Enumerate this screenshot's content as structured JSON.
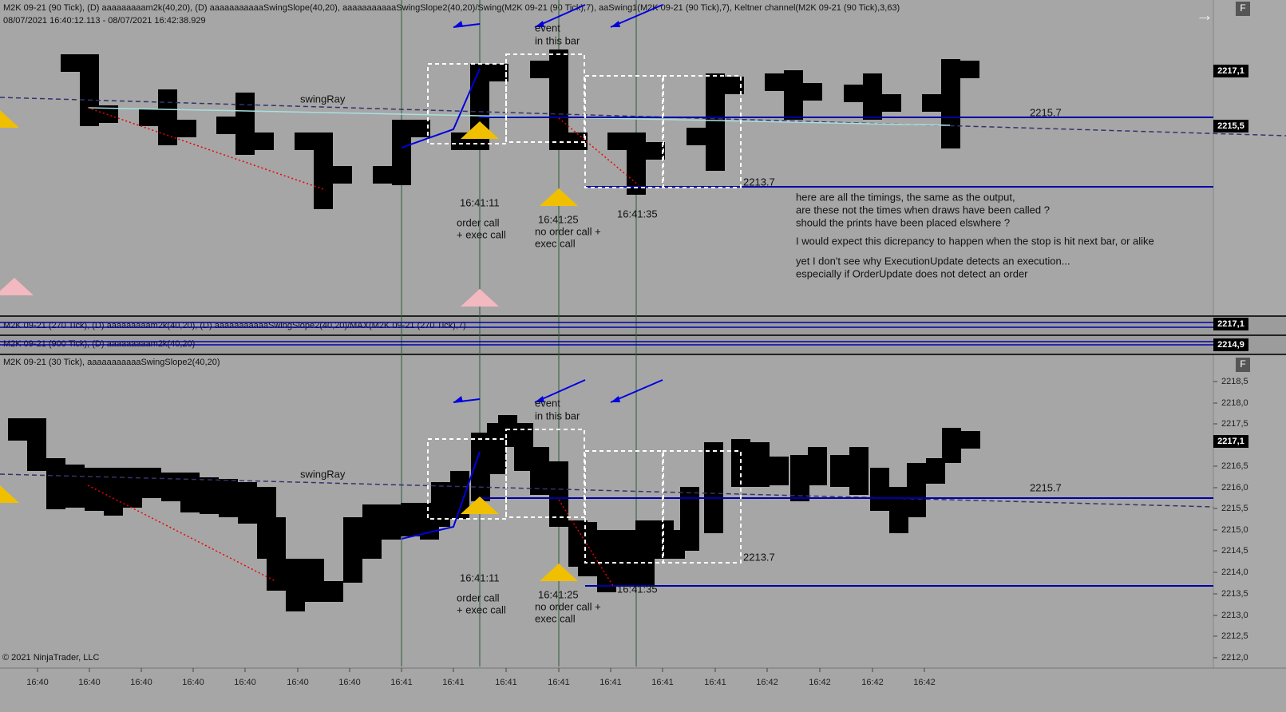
{
  "top_panel": {
    "header": "M2K 09-21 (90 Tick), (D) aaaaaaaaam2k(40,20), (D) aaaaaaaaaaaSwingSlope(40,20), aaaaaaaaaaaSwingSlope2(40,20)/Swing(M2K 09-21 (90 Tick),7), aaSwing1(M2K 09-21 (90 Tick),7), Keltner channel(M2K 09-21 (90 Tick),3,63)",
    "range": "08/07/2021 16:40:12.113 - 08/07/2021 16:42:38.929",
    "price_flags": [
      "2217,1",
      "2215,5"
    ],
    "annotations": {
      "event": "event",
      "in_bar": "in this bar",
      "swing_ray": "swingRay",
      "t1": "16:41:11",
      "order_call": "order call",
      "exec_call_1": "+ exec call",
      "t2": "16:41:25",
      "no_order_call": "no order call +",
      "exec_call_2": "exec call",
      "t3": "16:41:35",
      "level_high": "2215.7",
      "level_low": "2213.7"
    },
    "notes": [
      "here are all the timings, the same as the output,",
      "are these not the times when draws have been called ?",
      "should the prints have been placed elswhere ?",
      "I would expect this dicrepancy to happen when the stop is hit next bar, or alike",
      "yet I don't see why ExecutionUpdate detects an execution...",
      "especially if OrderUpdate does not detect an order"
    ]
  },
  "middle_panels": [
    {
      "header": "M2K 09-21 (270 Tick), (D) aaaaaaaaam2k(40,20), (D) aaaaaaaaaaaSwingSlope2(40,20)/MAX(M2K 09-21 (270 Tick),7)",
      "flag": "2217,1"
    },
    {
      "header": "M2K 09-21 (900 Tick), (D) aaaaaaaaam2k(40,20)",
      "flag": "2214,9"
    }
  ],
  "bottom_panel": {
    "header": "M2K 09-21 (30 Tick), aaaaaaaaaaaSwingSlope2(40,20)",
    "flag": "2217,1",
    "annotations": {
      "event": "event",
      "in_bar": "in this bar",
      "swing_ray": "swingRay",
      "t1": "16:41:11",
      "order_call": "order call",
      "exec_call_1": "+ exec call",
      "t2": "16:41:25",
      "no_order_call": "no order call +",
      "exec_call_2": "exec call",
      "t3": "16:41:35",
      "level_high": "2215.7",
      "level_low": "2213.7"
    },
    "price_axis": [
      "2218,5",
      "2218,0",
      "2217,5",
      "2216,5",
      "2216,0",
      "2215,5",
      "2215,0",
      "2214,5",
      "2214,0",
      "2213,5",
      "2213,0",
      "2212,5",
      "2212,0"
    ]
  },
  "time_axis": [
    "16:40",
    "16:40",
    "16:40",
    "16:40",
    "16:40",
    "16:40",
    "16:40",
    "16:41",
    "16:41",
    "16:41",
    "16:41",
    "16:41",
    "16:41",
    "16:41",
    "16:42",
    "16:42",
    "16:42",
    "16:42"
  ],
  "copyright": "© 2021 NinjaTrader, LLC"
}
